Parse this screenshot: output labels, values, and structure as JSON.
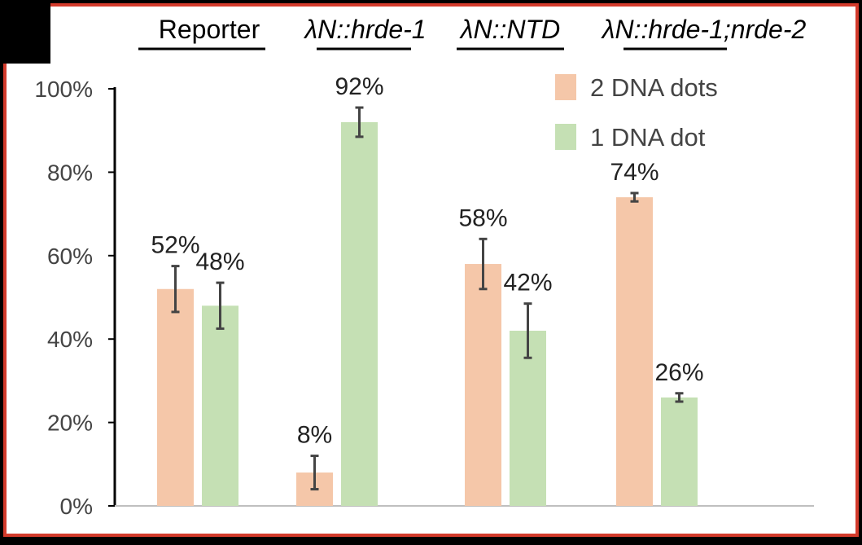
{
  "chart_data": {
    "type": "bar",
    "categories": [
      "Reporter",
      "λN::hrde-1",
      "λN::NTD",
      "λN::hrde-1;nrde-2"
    ],
    "category_styles": [
      "normal",
      "italic",
      "italic",
      "italic"
    ],
    "series": [
      {
        "name": "2 DNA dots",
        "color": "#f5c7a9",
        "values": [
          52,
          8,
          58,
          74
        ],
        "errors": [
          5.5,
          4,
          6,
          1
        ],
        "labels": [
          "52%",
          "8%",
          "58%",
          "74%"
        ]
      },
      {
        "name": "1 DNA dot",
        "color": "#c5e0b4",
        "values": [
          48,
          92,
          42,
          26
        ],
        "errors": [
          5.5,
          3.5,
          6.5,
          1
        ],
        "labels": [
          "48%",
          "92%",
          "42%",
          "26%"
        ]
      }
    ],
    "y_ticks": [
      0,
      20,
      40,
      60,
      80,
      100
    ],
    "y_tick_labels": [
      "0%",
      "20%",
      "40%",
      "60%",
      "80%",
      "100%"
    ],
    "ylim": [
      0,
      100
    ],
    "legend_position": "top-right",
    "frame_color": "#d33b2c",
    "error_bar_color": "#444444"
  }
}
